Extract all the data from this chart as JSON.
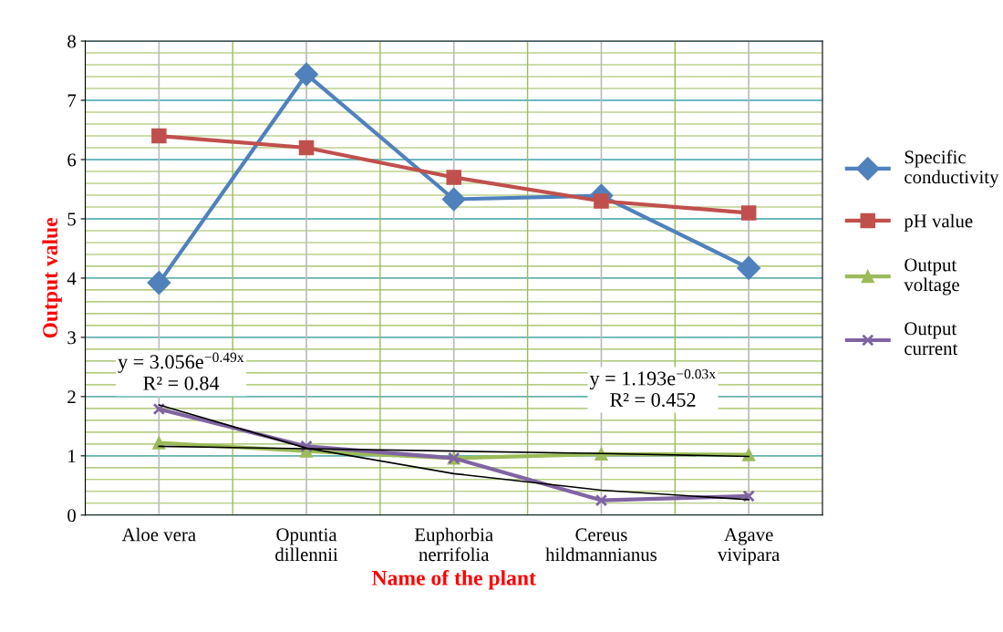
{
  "chart_data": {
    "type": "line",
    "xlabel": "Name of the plant",
    "ylabel": "Output value",
    "categories": [
      "Aloe vera",
      "Opuntia\ndillennii",
      "Euphorbia\nnerrifolia",
      "Cereus\nhildmannianus",
      "Agave\nvivipara"
    ],
    "series": [
      {
        "name": "Specific\nconductivity",
        "color": "#4f81bd",
        "marker": "diamond",
        "values": [
          3.92,
          7.44,
          5.33,
          5.39,
          4.17
        ]
      },
      {
        "name": "pH value",
        "color": "#c0504d",
        "marker": "square",
        "values": [
          6.4,
          6.2,
          5.7,
          5.3,
          5.1
        ]
      },
      {
        "name": "Output\nvoltage",
        "color": "#9bbb59",
        "marker": "triangle",
        "values": [
          1.22,
          1.08,
          0.96,
          1.03,
          1.02
        ]
      },
      {
        "name": "Output\ncurrent",
        "color": "#8064a2",
        "marker": "cross",
        "values": [
          1.79,
          1.16,
          0.96,
          0.25,
          0.32
        ]
      },
      {
        "color": "#000000",
        "marker": "none",
        "values": [
          1.86,
          1.13,
          0.7,
          0.42,
          0.26
        ]
      },
      {
        "color": "#000000",
        "marker": "none",
        "values": [
          1.16,
          1.12,
          1.08,
          1.04,
          0.99
        ]
      }
    ],
    "ylim": [
      0,
      8
    ],
    "yticks": [
      0,
      1,
      2,
      3,
      4,
      5,
      6,
      7,
      8
    ],
    "grid": true,
    "legend": "right",
    "annotations": [
      "y = 3.056e$^{−0.49x}$\nR² = 0.84",
      "y = 1.193e$^{−0.03x}$\nR² = 0.452"
    ]
  }
}
